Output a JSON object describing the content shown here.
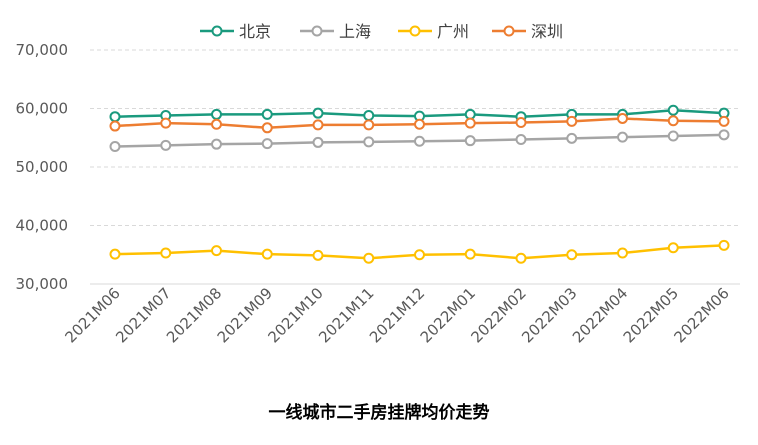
{
  "chart_data": {
    "type": "line",
    "title": "一线城市二手房挂牌均价走势",
    "xlabel": "",
    "ylabel": "",
    "ylim": [
      30000,
      70000
    ],
    "yticks": [
      30000,
      40000,
      50000,
      60000,
      70000
    ],
    "ytick_labels": [
      "30,000",
      "40,000",
      "50,000",
      "60,000",
      "70,000"
    ],
    "grid": true,
    "legend_position": "top",
    "categories": [
      "2021M06",
      "2021M07",
      "2021M08",
      "2021M09",
      "2021M10",
      "2021M11",
      "2021M12",
      "2022M01",
      "2022M02",
      "2022M03",
      "2022M04",
      "2022M05",
      "2022M06"
    ],
    "series": [
      {
        "name": "北京",
        "color": "#1a9a7e",
        "values": [
          58600,
          58800,
          59000,
          59000,
          59200,
          58800,
          58700,
          59000,
          58600,
          59000,
          59000,
          59700,
          59200
        ]
      },
      {
        "name": "上海",
        "color": "#a5a5a5",
        "values": [
          53500,
          53700,
          53900,
          54000,
          54200,
          54300,
          54400,
          54500,
          54700,
          54900,
          55100,
          55300,
          55500
        ]
      },
      {
        "name": "广州",
        "color": "#ffc000",
        "values": [
          35100,
          35300,
          35700,
          35100,
          34900,
          34400,
          35000,
          35100,
          34400,
          35000,
          35300,
          36200,
          36600
        ]
      },
      {
        "name": "深圳",
        "color": "#ed7d31",
        "values": [
          57000,
          57500,
          57300,
          56700,
          57200,
          57200,
          57300,
          57500,
          57600,
          57800,
          58300,
          57900,
          57800
        ]
      }
    ]
  }
}
